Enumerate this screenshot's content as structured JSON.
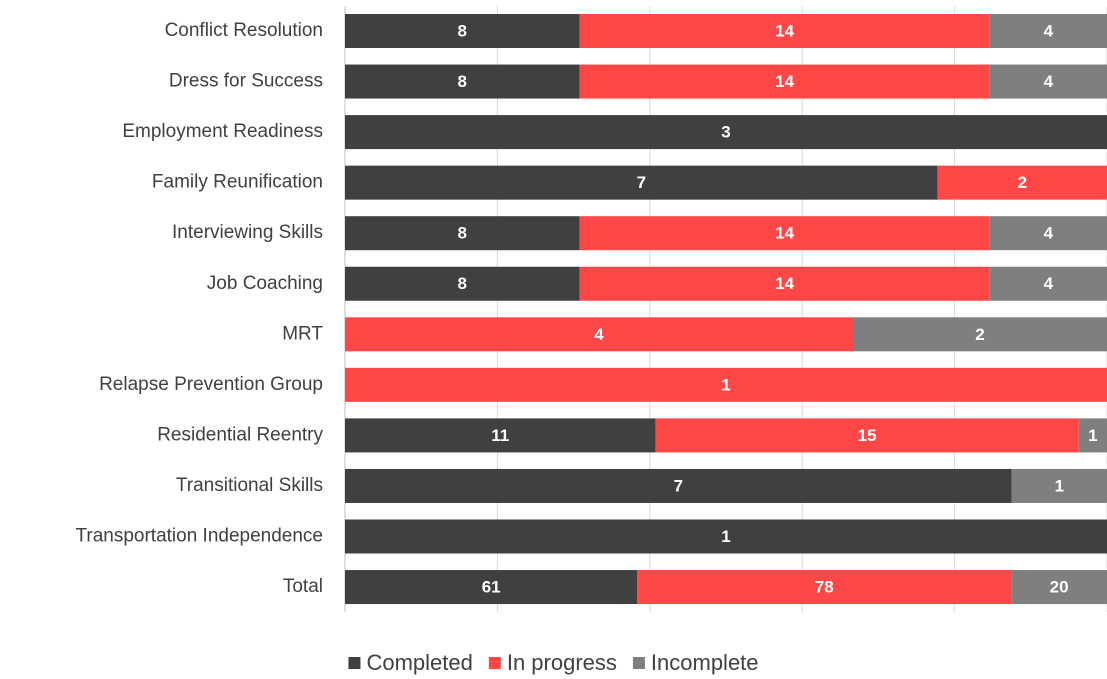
{
  "chart_data": {
    "type": "stacked_percent_barh",
    "categories": [
      "Conflict Resolution",
      "Dress for Success",
      "Employment Readiness",
      "Family Reunification",
      "Interviewing Skills",
      "Job Coaching",
      "MRT",
      "Relapse Prevention Group",
      "Residential Reentry",
      "Transitional Skills",
      "Transportation Independence",
      "Total"
    ],
    "series": [
      {
        "name": "Completed",
        "color": "#404040",
        "values": [
          8,
          8,
          3,
          7,
          8,
          8,
          null,
          null,
          11,
          7,
          1,
          61
        ]
      },
      {
        "name": "In progress",
        "color": "#ff4747",
        "values": [
          14,
          14,
          null,
          2,
          14,
          14,
          4,
          1,
          15,
          null,
          null,
          78
        ]
      },
      {
        "name": "Incomplete",
        "color": "#7f7f7f",
        "values": [
          4,
          4,
          null,
          null,
          4,
          4,
          2,
          null,
          1,
          1,
          null,
          20
        ]
      }
    ],
    "xlim": [
      0,
      100
    ],
    "xticks": [
      0,
      20,
      40,
      60,
      80,
      100
    ],
    "grid": true,
    "legend": "bottom"
  }
}
